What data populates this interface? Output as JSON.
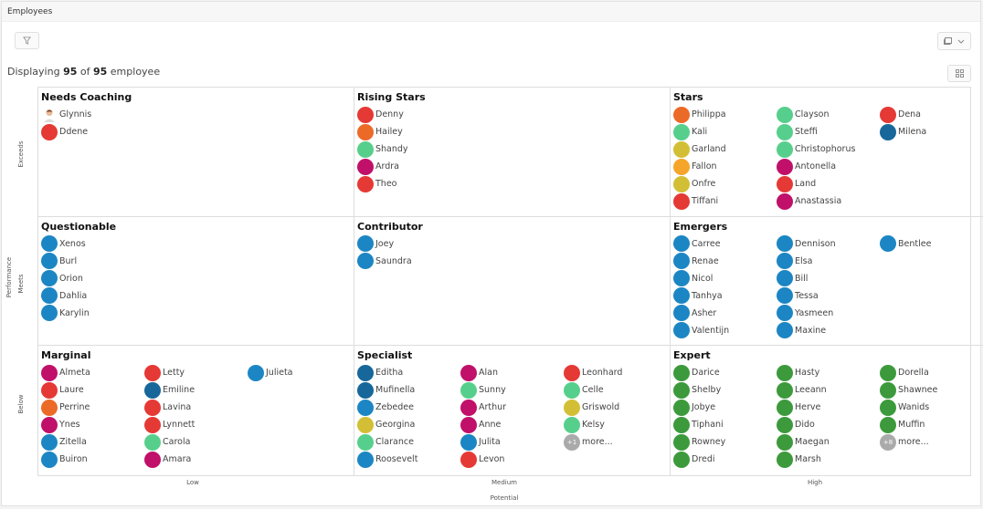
{
  "window": {
    "title": "Employees"
  },
  "toolbar": {
    "filter_icon": "filter-icon",
    "view_icon": "view-layout-icon",
    "expand_icon": "expand-icon"
  },
  "summary": {
    "prefix": "Displaying ",
    "shown": "95",
    "mid": " of ",
    "total": "95",
    "suffix": " employee"
  },
  "axes": {
    "y_title": "Performance",
    "y_levels": [
      "Exceeds",
      "Meets",
      "Below"
    ],
    "x_title": "Potential",
    "x_levels": [
      "Low",
      "Medium",
      "High"
    ]
  },
  "colors": {
    "red": "#e53935",
    "orange": "#ec6a28",
    "mint": "#57cf8c",
    "magenta": "#c0106a",
    "olive": "#d3bf35",
    "amber": "#f5a52a",
    "navy": "#17679a",
    "blue": "#1c86c4",
    "green": "#3c9a3c",
    "grey": "#aaaaaa"
  },
  "cells": [
    {
      "title": "Needs Coaching",
      "people": [
        {
          "name": "Glynnis",
          "color": "photo"
        },
        {
          "name": "Ddene",
          "color": "red"
        }
      ]
    },
    {
      "title": "Rising Stars",
      "people": [
        {
          "name": "Denny",
          "color": "red"
        },
        {
          "name": "Hailey",
          "color": "orange"
        },
        {
          "name": "Shandy",
          "color": "mint"
        },
        {
          "name": "Ardra",
          "color": "magenta"
        },
        {
          "name": "Theo",
          "color": "red"
        }
      ]
    },
    {
      "title": "Stars",
      "people": [
        {
          "name": "Philippa",
          "color": "orange"
        },
        {
          "name": "Kali",
          "color": "mint"
        },
        {
          "name": "Garland",
          "color": "olive"
        },
        {
          "name": "Fallon",
          "color": "amber"
        },
        {
          "name": "Onfre",
          "color": "olive"
        },
        {
          "name": "Tiffani",
          "color": "red"
        },
        {
          "name": "Clayson",
          "color": "mint"
        },
        {
          "name": "Steffi",
          "color": "mint"
        },
        {
          "name": "Christophorus",
          "color": "mint"
        },
        {
          "name": "Antonella",
          "color": "magenta"
        },
        {
          "name": "Land",
          "color": "red"
        },
        {
          "name": "Anastassia",
          "color": "magenta"
        },
        {
          "name": "Dena",
          "color": "red"
        },
        {
          "name": "Milena",
          "color": "navy"
        }
      ]
    },
    {
      "title": "Questionable",
      "people": [
        {
          "name": "Xenos",
          "color": "blue"
        },
        {
          "name": "Burl",
          "color": "blue"
        },
        {
          "name": "Orion",
          "color": "blue"
        },
        {
          "name": "Dahlia",
          "color": "blue"
        },
        {
          "name": "Karylin",
          "color": "blue"
        }
      ]
    },
    {
      "title": "Contributor",
      "people": [
        {
          "name": "Joey",
          "color": "blue"
        },
        {
          "name": "Saundra",
          "color": "blue"
        }
      ]
    },
    {
      "title": "Emergers",
      "people": [
        {
          "name": "Carree",
          "color": "blue"
        },
        {
          "name": "Renae",
          "color": "blue"
        },
        {
          "name": "Nicol",
          "color": "blue"
        },
        {
          "name": "Tanhya",
          "color": "blue"
        },
        {
          "name": "Asher",
          "color": "blue"
        },
        {
          "name": "Valentijn",
          "color": "blue"
        },
        {
          "name": "Dennison",
          "color": "blue"
        },
        {
          "name": "Elsa",
          "color": "blue"
        },
        {
          "name": "Bill",
          "color": "blue"
        },
        {
          "name": "Tessa",
          "color": "blue"
        },
        {
          "name": "Yasmeen",
          "color": "blue"
        },
        {
          "name": "Maxine",
          "color": "blue"
        },
        {
          "name": "Bentlee",
          "color": "blue"
        }
      ]
    },
    {
      "title": "Marginal",
      "people": [
        {
          "name": "Almeta",
          "color": "magenta"
        },
        {
          "name": "Laure",
          "color": "red"
        },
        {
          "name": "Perrine",
          "color": "orange"
        },
        {
          "name": "Ynes",
          "color": "magenta"
        },
        {
          "name": "Zitella",
          "color": "blue"
        },
        {
          "name": "Buiron",
          "color": "blue"
        },
        {
          "name": "Letty",
          "color": "red"
        },
        {
          "name": "Emiline",
          "color": "navy"
        },
        {
          "name": "Lavina",
          "color": "red"
        },
        {
          "name": "Lynnett",
          "color": "red"
        },
        {
          "name": "Carola",
          "color": "mint"
        },
        {
          "name": "Amara",
          "color": "magenta"
        },
        {
          "name": "Julieta",
          "color": "blue"
        }
      ]
    },
    {
      "title": "Specialist",
      "people": [
        {
          "name": "Editha",
          "color": "navy"
        },
        {
          "name": "Mufinella",
          "color": "navy"
        },
        {
          "name": "Zebedee",
          "color": "blue"
        },
        {
          "name": "Georgina",
          "color": "olive"
        },
        {
          "name": "Clarance",
          "color": "mint"
        },
        {
          "name": "Roosevelt",
          "color": "blue"
        },
        {
          "name": "Alan",
          "color": "magenta"
        },
        {
          "name": "Sunny",
          "color": "mint"
        },
        {
          "name": "Arthur",
          "color": "magenta"
        },
        {
          "name": "Anne",
          "color": "magenta"
        },
        {
          "name": "Julita",
          "color": "blue"
        },
        {
          "name": "Levon",
          "color": "red"
        },
        {
          "name": "Leonhard",
          "color": "red"
        },
        {
          "name": "Celle",
          "color": "mint"
        },
        {
          "name": "Griswold",
          "color": "olive"
        },
        {
          "name": "Kelsy",
          "color": "mint"
        },
        {
          "name": "more...",
          "color": "grey",
          "badge": "+1"
        }
      ]
    },
    {
      "title": "Expert",
      "people": [
        {
          "name": "Darice",
          "color": "green"
        },
        {
          "name": "Shelby",
          "color": "green"
        },
        {
          "name": "Jobye",
          "color": "green"
        },
        {
          "name": "Tiphani",
          "color": "green"
        },
        {
          "name": "Rowney",
          "color": "green"
        },
        {
          "name": "Dredi",
          "color": "green"
        },
        {
          "name": "Hasty",
          "color": "green"
        },
        {
          "name": "Leeann",
          "color": "green"
        },
        {
          "name": "Herve",
          "color": "green"
        },
        {
          "name": "Dido",
          "color": "green"
        },
        {
          "name": "Maegan",
          "color": "green"
        },
        {
          "name": "Marsh",
          "color": "green"
        },
        {
          "name": "Dorella",
          "color": "green"
        },
        {
          "name": "Shawnee",
          "color": "green"
        },
        {
          "name": "Wanids",
          "color": "green"
        },
        {
          "name": "Muffin",
          "color": "green"
        },
        {
          "name": "more...",
          "color": "grey",
          "badge": "+8"
        }
      ]
    }
  ]
}
